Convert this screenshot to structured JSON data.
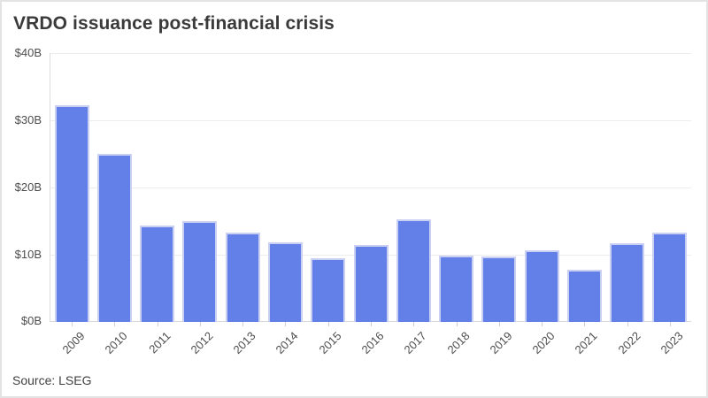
{
  "chart_data": {
    "type": "bar",
    "title": "VRDO issuance post-financial crisis",
    "categories": [
      "2009",
      "2010",
      "2011",
      "2012",
      "2013",
      "2014",
      "2015",
      "2016",
      "2017",
      "2018",
      "2019",
      "2020",
      "2021",
      "2022",
      "2023"
    ],
    "values": [
      32.3,
      25.0,
      14.4,
      15.0,
      13.3,
      11.8,
      9.5,
      11.5,
      15.3,
      9.9,
      9.8,
      10.7,
      7.7,
      11.7,
      13.3
    ],
    "xlabel": "",
    "ylabel": "",
    "ylim": [
      0,
      40
    ],
    "yticks": [
      0,
      10,
      20,
      30,
      40
    ],
    "ytick_labels": [
      "$0B",
      "$10B",
      "$20B",
      "$30B",
      "$40B"
    ],
    "grid": true,
    "legend": "none",
    "bar_color": "#6280e8",
    "bar_border_color": "#c9d0f4"
  },
  "footer": {
    "source": "Source: LSEG"
  }
}
